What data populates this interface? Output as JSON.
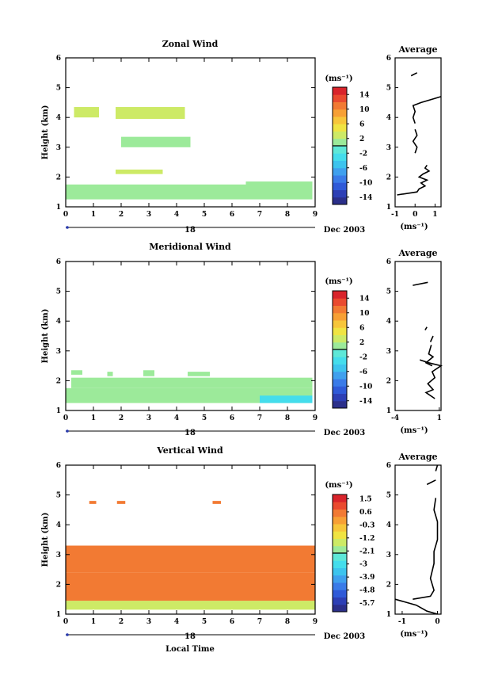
{
  "common": {
    "date_label": "Dec 2003",
    "day_label": "18",
    "unit_label": "(ms⁻¹)",
    "ylabel": "Height (km)",
    "xlabel": "Local Time",
    "average_title": "Average"
  },
  "chart_data": [
    {
      "type": "heatmap",
      "title": "Zonal Wind",
      "xlabel": "",
      "ylabel": "Height (km)",
      "x_ticks": [
        0,
        1,
        2,
        3,
        4,
        5,
        6,
        7,
        8,
        9
      ],
      "y_ticks": [
        1,
        2,
        3,
        4,
        5,
        6
      ],
      "xlim": [
        0,
        9
      ],
      "ylim": [
        1,
        6
      ],
      "colorbar": {
        "label": "(ms⁻¹)",
        "ticks": [
          14,
          10,
          6,
          2,
          -2,
          -6,
          -10,
          -14
        ],
        "range": [
          -16,
          16
        ],
        "colors": [
          "#2b2f8a",
          "#2d3fb5",
          "#2f5ad8",
          "#3a7be8",
          "#3fa0ee",
          "#3dc4ee",
          "#44ddec",
          "#5ee8d8",
          "#9cea9a",
          "#cdea66",
          "#f0e442",
          "#f7c63a",
          "#f7a035",
          "#f27a33",
          "#ea4a2f",
          "#d9242b"
        ]
      },
      "patches": [
        {
          "x": [
            0.0,
            8.9
          ],
          "y": [
            1.25,
            1.75
          ],
          "value": 1
        },
        {
          "x": [
            2.0,
            4.5
          ],
          "y": [
            3.0,
            3.35
          ],
          "value": 1
        },
        {
          "x": [
            1.8,
            4.3
          ],
          "y": [
            3.95,
            4.35
          ],
          "value": 2
        },
        {
          "x": [
            0.3,
            1.2
          ],
          "y": [
            4.0,
            4.35
          ],
          "value": 2
        },
        {
          "x": [
            1.8,
            3.5
          ],
          "y": [
            2.1,
            2.25
          ],
          "value": 2
        },
        {
          "x": [
            6.5,
            8.9
          ],
          "y": [
            1.6,
            1.85
          ],
          "value": 0
        }
      ],
      "average": {
        "xlim": [
          -1,
          1.3
        ],
        "x_ticks": [
          -1,
          0,
          1
        ],
        "ylim": [
          1,
          6
        ],
        "y_ticks": [
          1,
          2,
          3,
          4,
          5,
          6
        ],
        "xlabel": "(ms⁻¹)",
        "segments": [
          [
            [
              -0.9,
              1.4
            ],
            [
              0.1,
              1.5
            ],
            [
              0.2,
              1.6
            ],
            [
              0.5,
              1.7
            ],
            [
              0.3,
              1.8
            ],
            [
              0.6,
              1.9
            ],
            [
              0.2,
              2.0
            ],
            [
              0.4,
              2.1
            ],
            [
              0.7,
              2.2
            ],
            [
              0.5,
              2.3
            ],
            [
              0.6,
              2.4
            ]
          ],
          [
            [
              0.0,
              2.8
            ],
            [
              0.1,
              3.0
            ],
            [
              -0.1,
              3.2
            ],
            [
              0.1,
              3.4
            ],
            [
              0.0,
              3.6
            ]
          ],
          [
            [
              0.0,
              3.8
            ],
            [
              -0.1,
              4.0
            ],
            [
              0.0,
              4.2
            ],
            [
              -0.1,
              4.4
            ],
            [
              0.3,
              4.5
            ],
            [
              1.3,
              4.7
            ]
          ],
          [
            [
              -0.2,
              5.4
            ],
            [
              0.1,
              5.5
            ]
          ]
        ]
      }
    },
    {
      "type": "heatmap",
      "title": "Meridional Wind",
      "xlabel": "",
      "ylabel": "Height (km)",
      "x_ticks": [
        0,
        1,
        2,
        3,
        4,
        5,
        6,
        7,
        8,
        9
      ],
      "y_ticks": [
        1,
        2,
        3,
        4,
        5,
        6
      ],
      "xlim": [
        0,
        9
      ],
      "ylim": [
        1,
        6
      ],
      "colorbar": {
        "label": "(ms⁻¹)",
        "ticks": [
          14,
          10,
          6,
          2,
          -2,
          -6,
          -10,
          -14
        ],
        "range": [
          -16,
          16
        ],
        "colors": [
          "#2b2f8a",
          "#2d3fb5",
          "#2f5ad8",
          "#3a7be8",
          "#3fa0ee",
          "#3dc4ee",
          "#44ddec",
          "#5ee8d8",
          "#9cea9a",
          "#cdea66",
          "#f0e442",
          "#f7c63a",
          "#f7a035",
          "#f27a33",
          "#ea4a2f",
          "#d9242b"
        ]
      },
      "patches": [
        {
          "x": [
            0.0,
            8.9
          ],
          "y": [
            1.25,
            1.75
          ],
          "value": 0
        },
        {
          "x": [
            0.2,
            8.9
          ],
          "y": [
            1.75,
            2.1
          ],
          "value": 1
        },
        {
          "x": [
            0.2,
            0.6
          ],
          "y": [
            2.2,
            2.35
          ],
          "value": 1
        },
        {
          "x": [
            1.5,
            1.7
          ],
          "y": [
            2.15,
            2.3
          ],
          "value": 1
        },
        {
          "x": [
            2.8,
            3.2
          ],
          "y": [
            2.15,
            2.35
          ],
          "value": 1
        },
        {
          "x": [
            4.4,
            5.2
          ],
          "y": [
            2.15,
            2.3
          ],
          "value": 1
        },
        {
          "x": [
            7.0,
            8.9
          ],
          "y": [
            1.25,
            1.5
          ],
          "value": -3
        }
      ],
      "average": {
        "xlim": [
          -4,
          1.2
        ],
        "x_ticks": [
          -4,
          1
        ],
        "ylim": [
          1,
          6
        ],
        "y_ticks": [
          1,
          2,
          3,
          4,
          5,
          6
        ],
        "xlabel": "(ms⁻¹)",
        "segments": [
          [
            [
              0.5,
              1.4
            ],
            [
              -0.5,
              1.6
            ],
            [
              0.3,
              1.7
            ],
            [
              -0.3,
              1.9
            ],
            [
              0.5,
              2.1
            ],
            [
              0.2,
              2.3
            ],
            [
              1.2,
              2.5
            ],
            [
              -0.2,
              2.6
            ],
            [
              -1.2,
              2.7
            ]
          ],
          [
            [
              0.2,
              2.5
            ],
            [
              -0.5,
              2.6
            ],
            [
              0.3,
              2.8
            ],
            [
              -0.2,
              2.9
            ],
            [
              0.1,
              3.2
            ]
          ],
          [
            [
              0.0,
              3.3
            ],
            [
              0.3,
              3.5
            ]
          ],
          [
            [
              -0.6,
              3.7
            ],
            [
              -0.4,
              3.8
            ]
          ],
          [
            [
              -2.0,
              5.2
            ],
            [
              -0.3,
              5.3
            ]
          ]
        ]
      }
    },
    {
      "type": "heatmap",
      "title": "Vertical Wind",
      "xlabel": "Local Time",
      "ylabel": "Height (km)",
      "x_ticks": [
        0,
        1,
        2,
        3,
        4,
        5,
        6,
        7,
        8,
        9
      ],
      "y_ticks": [
        1,
        2,
        3,
        4,
        5,
        6
      ],
      "xlim": [
        0,
        9
      ],
      "ylim": [
        1,
        6
      ],
      "colorbar": {
        "label": "(ms⁻¹)",
        "ticks": [
          1.5,
          0.6,
          -0.3,
          -1.2,
          -2.1,
          -3.0,
          -3.9,
          -4.8,
          -5.7
        ],
        "range": [
          -6.3,
          1.8
        ],
        "colors": [
          "#2b2f8a",
          "#2d3fb5",
          "#2f5ad8",
          "#3a7be8",
          "#3fa0ee",
          "#3dc4ee",
          "#44ddec",
          "#5ee8d8",
          "#9cea9a",
          "#cdea66",
          "#f0e442",
          "#f7c63a",
          "#f7a035",
          "#f27a33",
          "#ea4a2f",
          "#d9242b"
        ]
      },
      "patches": [
        {
          "x": [
            0.0,
            9.0
          ],
          "y": [
            1.15,
            1.45
          ],
          "value": -1.4
        },
        {
          "x": [
            0.0,
            9.0
          ],
          "y": [
            1.45,
            2.4
          ],
          "value": 0.3
        },
        {
          "x": [
            0.0,
            9.0
          ],
          "y": [
            2.4,
            3.3
          ],
          "value": 0.7
        },
        {
          "x": [
            0.85,
            1.1
          ],
          "y": [
            4.7,
            4.8
          ],
          "value": 0.7
        },
        {
          "x": [
            1.85,
            2.15
          ],
          "y": [
            4.7,
            4.8
          ],
          "value": 0.7
        },
        {
          "x": [
            5.3,
            5.6
          ],
          "y": [
            4.7,
            4.8
          ],
          "value": 0.7
        }
      ],
      "average": {
        "xlim": [
          -1.2,
          0.1
        ],
        "x_ticks": [
          -1,
          0
        ],
        "ylim": [
          1,
          6
        ],
        "y_ticks": [
          1,
          2,
          3,
          4,
          5,
          6
        ],
        "xlabel": "(ms⁻¹)",
        "segments": [
          [
            [
              -1.2,
              1.5
            ],
            [
              -0.6,
              1.3
            ],
            [
              -0.3,
              1.1
            ],
            [
              0.0,
              1.0
            ]
          ],
          [
            [
              -0.7,
              1.5
            ],
            [
              -0.2,
              1.6
            ],
            [
              -0.1,
              1.8
            ],
            [
              -0.2,
              2.2
            ],
            [
              -0.1,
              2.7
            ],
            [
              -0.1,
              3.1
            ],
            [
              0.0,
              3.5
            ],
            [
              0.0,
              4.1
            ],
            [
              -0.1,
              4.5
            ],
            [
              -0.05,
              4.9
            ]
          ],
          [
            [
              -0.3,
              5.35
            ],
            [
              -0.05,
              5.5
            ]
          ],
          [
            [
              -0.05,
              5.8
            ],
            [
              0.0,
              6.0
            ]
          ]
        ]
      }
    }
  ]
}
